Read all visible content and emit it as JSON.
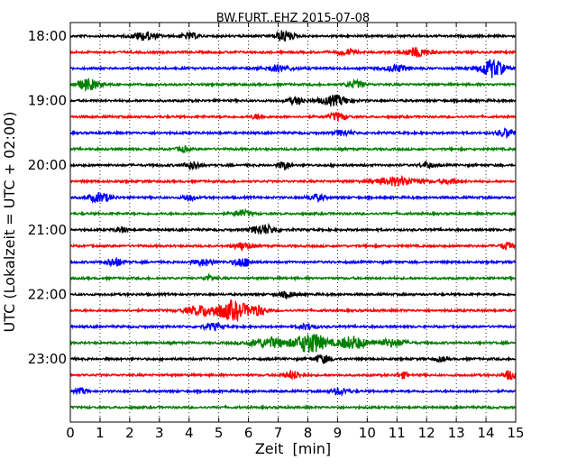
{
  "chart_data": {
    "type": "line",
    "title": "BW.FURT..EHZ 2015-07-08",
    "xlabel": "Zeit  [min]",
    "ylabel": "UTC (Lokalzeit = UTC + 02:00)",
    "xlim": [
      0,
      15
    ],
    "x_ticks": [
      0,
      1,
      2,
      3,
      4,
      5,
      6,
      7,
      8,
      9,
      10,
      11,
      12,
      13,
      14,
      15
    ],
    "x_tick_labels": [
      "0",
      "1",
      "2",
      "3",
      "4",
      "5",
      "6",
      "7",
      "8",
      "9",
      "10",
      "11",
      "12",
      "13",
      "14",
      "15"
    ],
    "y_tick_labels": [
      "18:00",
      "19:00",
      "20:00",
      "21:00",
      "22:00",
      "23:00"
    ],
    "trace_interval_minutes": 15,
    "first_trace": "18:00",
    "trace_count": 24,
    "vertical_grid": "dotted",
    "trace_colors": [
      "#000000",
      "#ff0000",
      "#0000ff",
      "#008000"
    ],
    "series": [
      {
        "start": "18:00",
        "color_index": 0,
        "bursts": [
          [
            2.5,
            0.45,
            0.4
          ],
          [
            7.2,
            0.6,
            0.3
          ],
          [
            4.0,
            0.3,
            0.3
          ]
        ]
      },
      {
        "start": "18:15",
        "color_index": 1,
        "bursts": [
          [
            11.7,
            0.5,
            0.4
          ],
          [
            9.3,
            0.3,
            0.3
          ]
        ]
      },
      {
        "start": "18:30",
        "color_index": 2,
        "bursts": [
          [
            14.2,
            1.0,
            0.4
          ],
          [
            7.0,
            0.3,
            0.5
          ],
          [
            11.0,
            0.35,
            0.4
          ]
        ]
      },
      {
        "start": "18:45",
        "color_index": 3,
        "bursts": [
          [
            0.6,
            0.6,
            0.4
          ],
          [
            9.6,
            0.4,
            0.3
          ]
        ]
      },
      {
        "start": "19:00",
        "color_index": 0,
        "bursts": [
          [
            8.9,
            0.55,
            0.5
          ],
          [
            7.6,
            0.35,
            0.3
          ]
        ]
      },
      {
        "start": "19:15",
        "color_index": 1,
        "bursts": [
          [
            9.0,
            0.45,
            0.3
          ],
          [
            6.3,
            0.25,
            0.2
          ]
        ]
      },
      {
        "start": "19:30",
        "color_index": 2,
        "bursts": [
          [
            14.7,
            0.45,
            0.3
          ],
          [
            9.2,
            0.3,
            0.3
          ]
        ]
      },
      {
        "start": "19:45",
        "color_index": 3,
        "bursts": [
          [
            3.8,
            0.3,
            0.2
          ]
        ]
      },
      {
        "start": "20:00",
        "color_index": 0,
        "bursts": [
          [
            4.1,
            0.4,
            0.3
          ],
          [
            7.2,
            0.5,
            0.2
          ],
          [
            12.0,
            0.35,
            0.2
          ]
        ]
      },
      {
        "start": "20:15",
        "color_index": 1,
        "bursts": [
          [
            11.0,
            0.45,
            0.8
          ],
          [
            12.8,
            0.3,
            0.3
          ]
        ]
      },
      {
        "start": "20:30",
        "color_index": 2,
        "bursts": [
          [
            1.0,
            0.5,
            0.4
          ],
          [
            4.0,
            0.35,
            0.2
          ],
          [
            8.3,
            0.35,
            0.3
          ]
        ]
      },
      {
        "start": "20:45",
        "color_index": 3,
        "bursts": [
          [
            5.8,
            0.3,
            0.3
          ]
        ]
      },
      {
        "start": "21:00",
        "color_index": 0,
        "bursts": [
          [
            6.5,
            0.55,
            0.4
          ],
          [
            1.7,
            0.3,
            0.2
          ]
        ]
      },
      {
        "start": "21:15",
        "color_index": 1,
        "bursts": [
          [
            5.8,
            0.4,
            0.3
          ],
          [
            14.7,
            0.4,
            0.2
          ]
        ]
      },
      {
        "start": "21:30",
        "color_index": 2,
        "bursts": [
          [
            1.5,
            0.45,
            0.3
          ],
          [
            5.8,
            0.5,
            0.3
          ],
          [
            4.5,
            0.35,
            0.4
          ]
        ]
      },
      {
        "start": "21:45",
        "color_index": 3,
        "bursts": [
          [
            4.7,
            0.3,
            0.2
          ]
        ]
      },
      {
        "start": "22:00",
        "color_index": 0,
        "bursts": [
          [
            7.3,
            0.3,
            0.3
          ]
        ]
      },
      {
        "start": "22:15",
        "color_index": 1,
        "bursts": [
          [
            5.5,
            1.0,
            0.5
          ],
          [
            4.5,
            0.55,
            0.6
          ],
          [
            6.3,
            0.5,
            0.3
          ]
        ]
      },
      {
        "start": "22:30",
        "color_index": 2,
        "bursts": [
          [
            4.8,
            0.35,
            0.3
          ],
          [
            8.0,
            0.3,
            0.3
          ]
        ]
      },
      {
        "start": "22:45",
        "color_index": 3,
        "bursts": [
          [
            8.1,
            1.15,
            0.5
          ],
          [
            9.5,
            0.7,
            0.5
          ],
          [
            6.7,
            0.55,
            0.7
          ],
          [
            10.8,
            0.4,
            0.5
          ]
        ]
      },
      {
        "start": "23:00",
        "color_index": 0,
        "bursts": [
          [
            8.5,
            0.4,
            0.3
          ],
          [
            12.5,
            0.25,
            0.2
          ]
        ]
      },
      {
        "start": "23:15",
        "color_index": 1,
        "bursts": [
          [
            14.8,
            0.5,
            0.2
          ],
          [
            7.5,
            0.4,
            0.3
          ],
          [
            11.2,
            0.3,
            0.2
          ]
        ]
      },
      {
        "start": "23:30",
        "color_index": 2,
        "bursts": [
          [
            9.1,
            0.35,
            0.3
          ],
          [
            0.4,
            0.3,
            0.2
          ]
        ]
      },
      {
        "start": "23:45",
        "color_index": 3,
        "bursts": []
      }
    ]
  }
}
